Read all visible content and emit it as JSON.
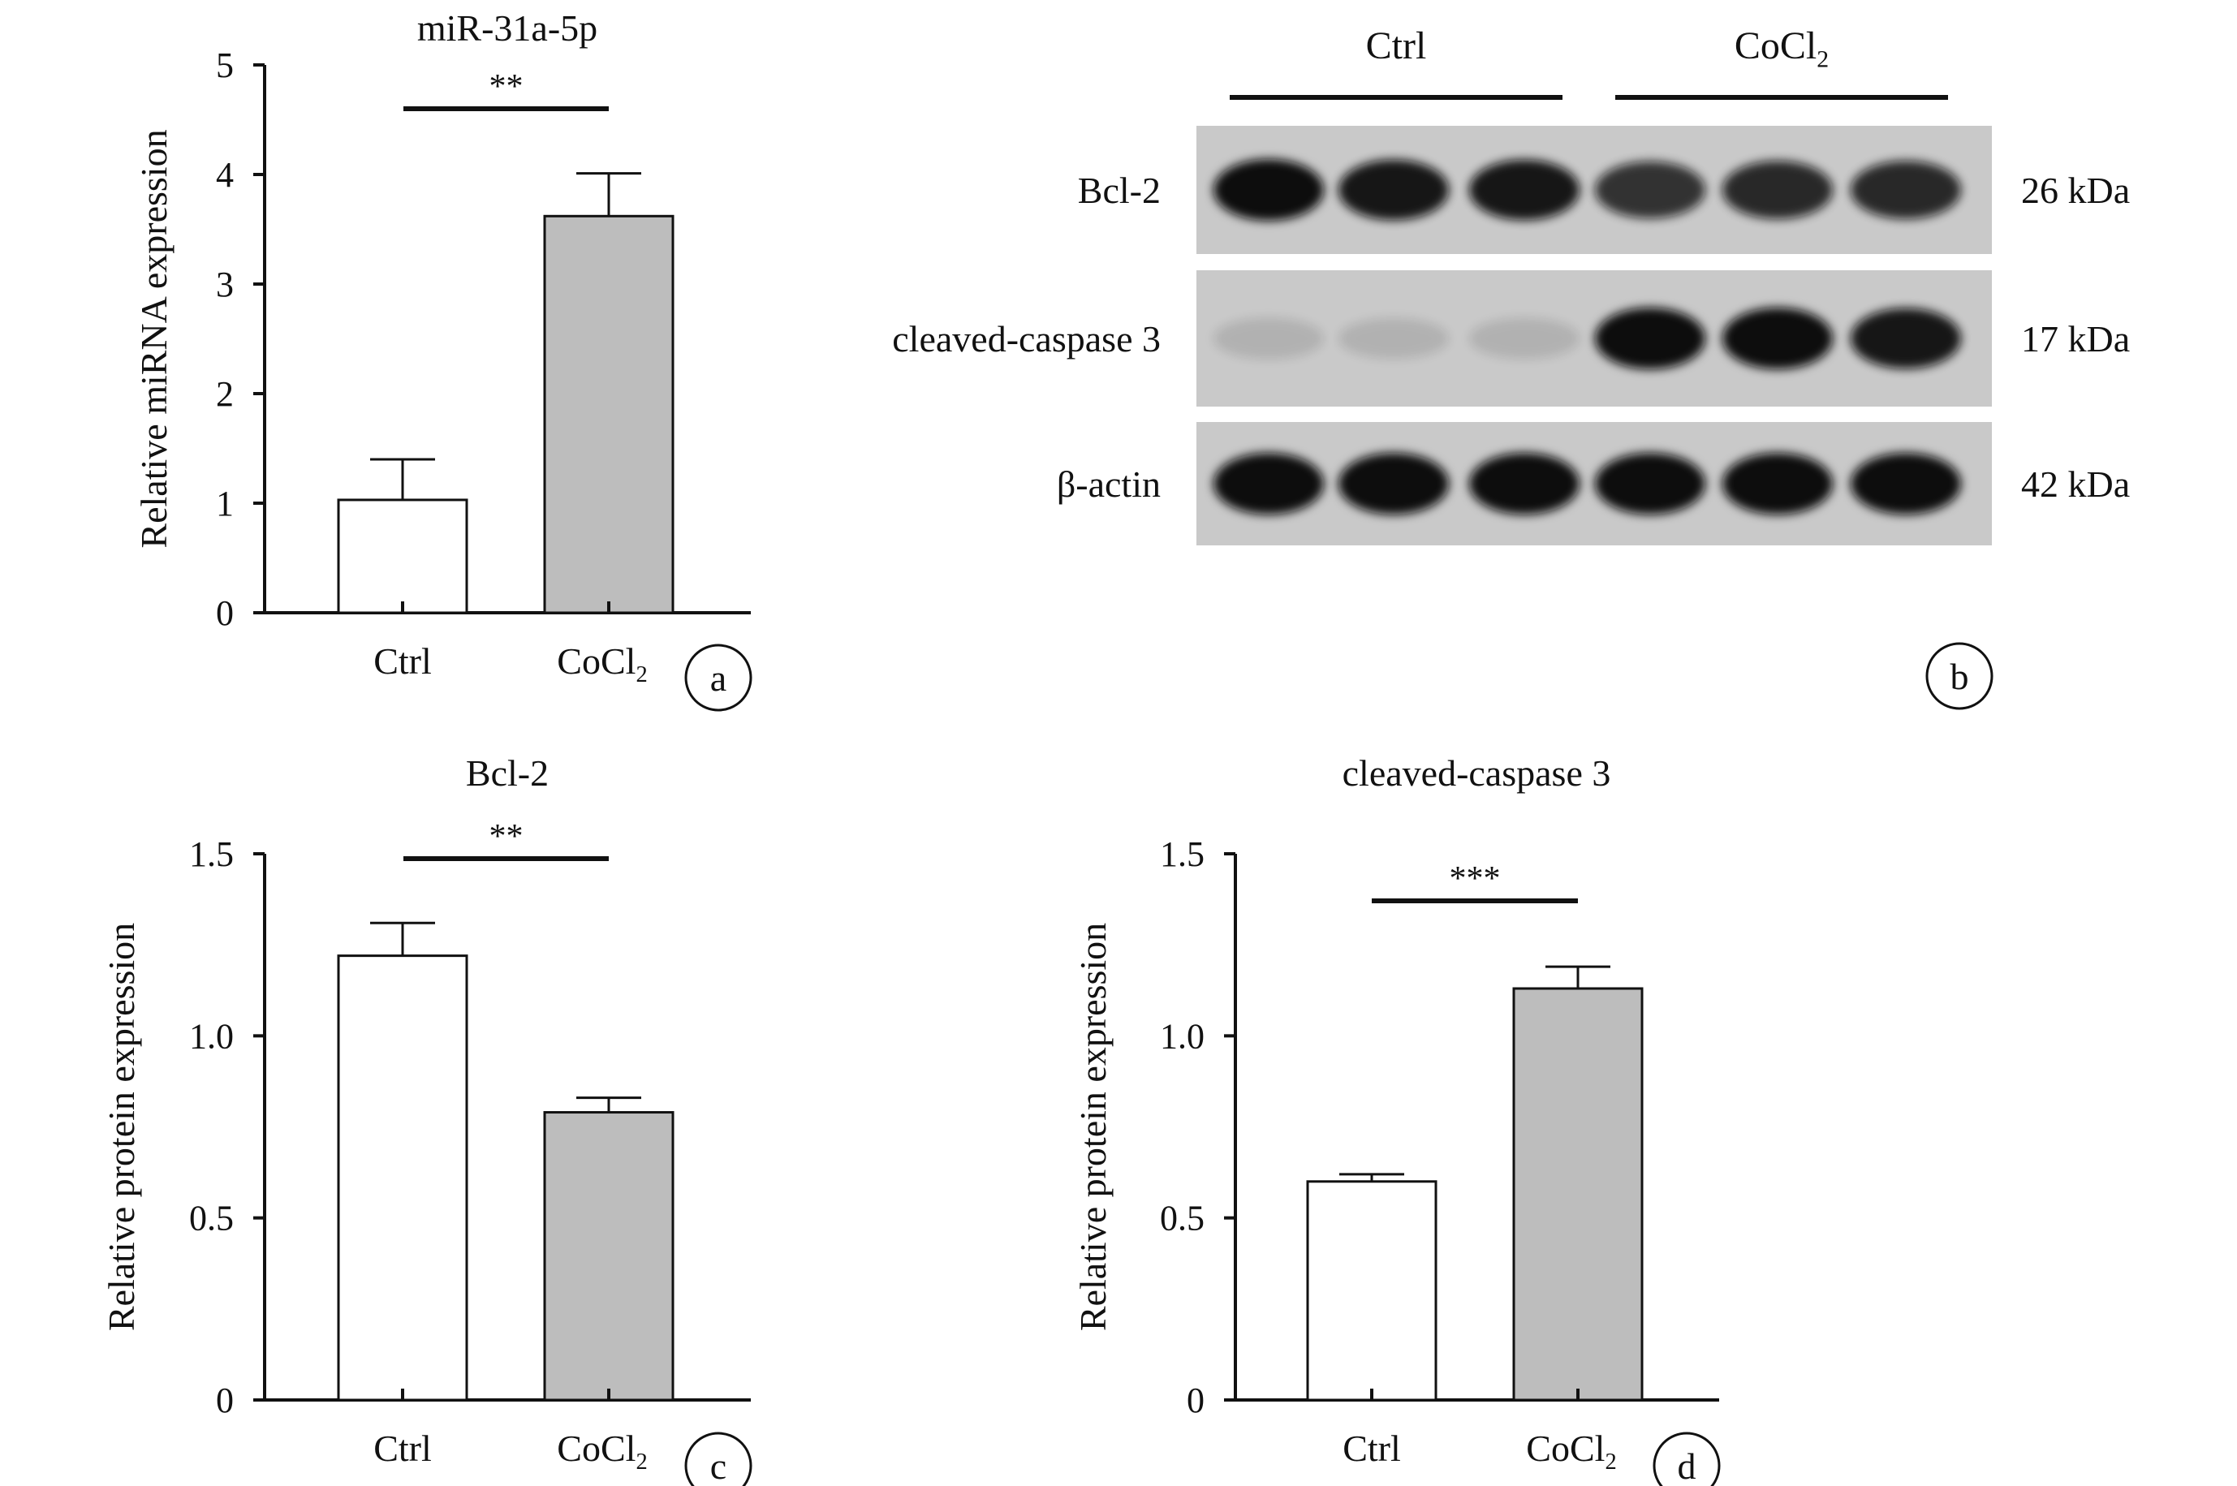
{
  "colors": {
    "ctrl_fill": "#ffffff",
    "cocl2_fill": "#bdbdbd",
    "axis": "#111111",
    "blot_bg": "#c9c9c9",
    "band": "#111111"
  },
  "chart_data": [
    {
      "panel": "a",
      "type": "bar",
      "title": "miR-31a-5p",
      "ylabel": "Relative miRNA expression",
      "xlabel": "",
      "categories": [
        "Ctrl",
        "CoCl2"
      ],
      "values": [
        1.03,
        3.62
      ],
      "errors": [
        0.37,
        0.39
      ],
      "ylim": [
        0,
        5
      ],
      "yticks": [
        "0",
        "1",
        "2",
        "3",
        "4",
        "5"
      ],
      "significance": "**",
      "grid": false
    },
    {
      "panel": "c",
      "type": "bar",
      "title": "Bcl-2",
      "ylabel": "Relative protein expression",
      "xlabel": "",
      "categories": [
        "Ctrl",
        "CoCl2"
      ],
      "values": [
        1.22,
        0.79
      ],
      "errors": [
        0.09,
        0.04
      ],
      "ylim": [
        0,
        1.5
      ],
      "yticks": [
        "0",
        "0.5",
        "1.0",
        "1.5"
      ],
      "significance": "**",
      "grid": false
    },
    {
      "panel": "d",
      "type": "bar",
      "title": "cleaved-caspase 3",
      "ylabel": "Relative protein expression",
      "xlabel": "",
      "categories": [
        "Ctrl",
        "CoCl2"
      ],
      "values": [
        0.6,
        1.13
      ],
      "errors": [
        0.02,
        0.06
      ],
      "ylim": [
        0,
        1.5
      ],
      "yticks": [
        "0",
        "0.5",
        "1.0",
        "1.5"
      ],
      "significance": "***",
      "grid": false
    }
  ],
  "blot": {
    "panel": "b",
    "groups": [
      "Ctrl",
      "CoCl2"
    ],
    "rows": [
      {
        "protein": "Bcl-2",
        "size": "26 kDa",
        "intensity": [
          1.0,
          0.95,
          0.95,
          0.8,
          0.85,
          0.85
        ]
      },
      {
        "protein": "cleaved-caspase 3",
        "size": "17 kDa",
        "intensity": [
          0.12,
          0.08,
          0.1,
          1.0,
          1.0,
          0.95
        ]
      },
      {
        "protein": "β-actin",
        "size": "42 kDa",
        "intensity": [
          1.0,
          1.0,
          1.0,
          1.0,
          1.0,
          1.0
        ]
      }
    ]
  },
  "panel_labels": [
    "a",
    "b",
    "c",
    "d"
  ]
}
